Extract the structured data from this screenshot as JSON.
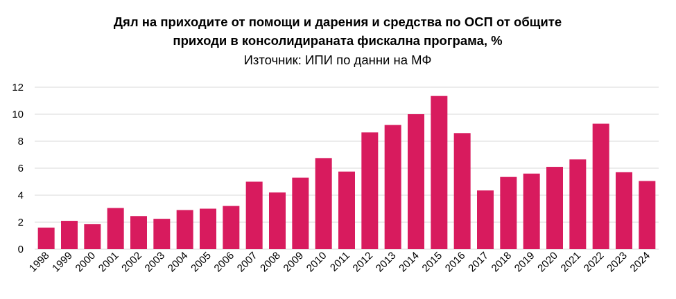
{
  "chart_data": {
    "type": "bar",
    "title": "Дял на приходите от помощи и дарения и средства по ОСП от общите приходи в консолидираната фискална програма, %",
    "title_lines": [
      "Дял на приходите от помощи и дарения и средства по ОСП от общите",
      "приходи в консолидираната фискална програма, %"
    ],
    "subtitle": "Източник: ИПИ по данни на МФ",
    "xlabel": "",
    "ylabel": "",
    "ylim": [
      0,
      12
    ],
    "yticks": [
      0,
      2,
      4,
      6,
      8,
      10,
      12
    ],
    "grid": true,
    "color": "#d81b5e",
    "categories": [
      "1998",
      "1999",
      "2000",
      "2001",
      "2002",
      "2003",
      "2004",
      "2005",
      "2006",
      "2007",
      "2008",
      "2009",
      "2010",
      "2011",
      "2012",
      "2013",
      "2014",
      "2015",
      "2016",
      "2017",
      "2018",
      "2019",
      "2020",
      "2021",
      "2022",
      "2023",
      "2024"
    ],
    "values": [
      1.6,
      2.1,
      1.85,
      3.05,
      2.45,
      2.25,
      2.9,
      3.0,
      3.2,
      5.0,
      4.2,
      5.3,
      6.75,
      5.75,
      8.65,
      9.2,
      10.0,
      11.35,
      8.6,
      4.35,
      5.35,
      5.6,
      6.1,
      6.65,
      9.3,
      5.7,
      5.05
    ]
  }
}
